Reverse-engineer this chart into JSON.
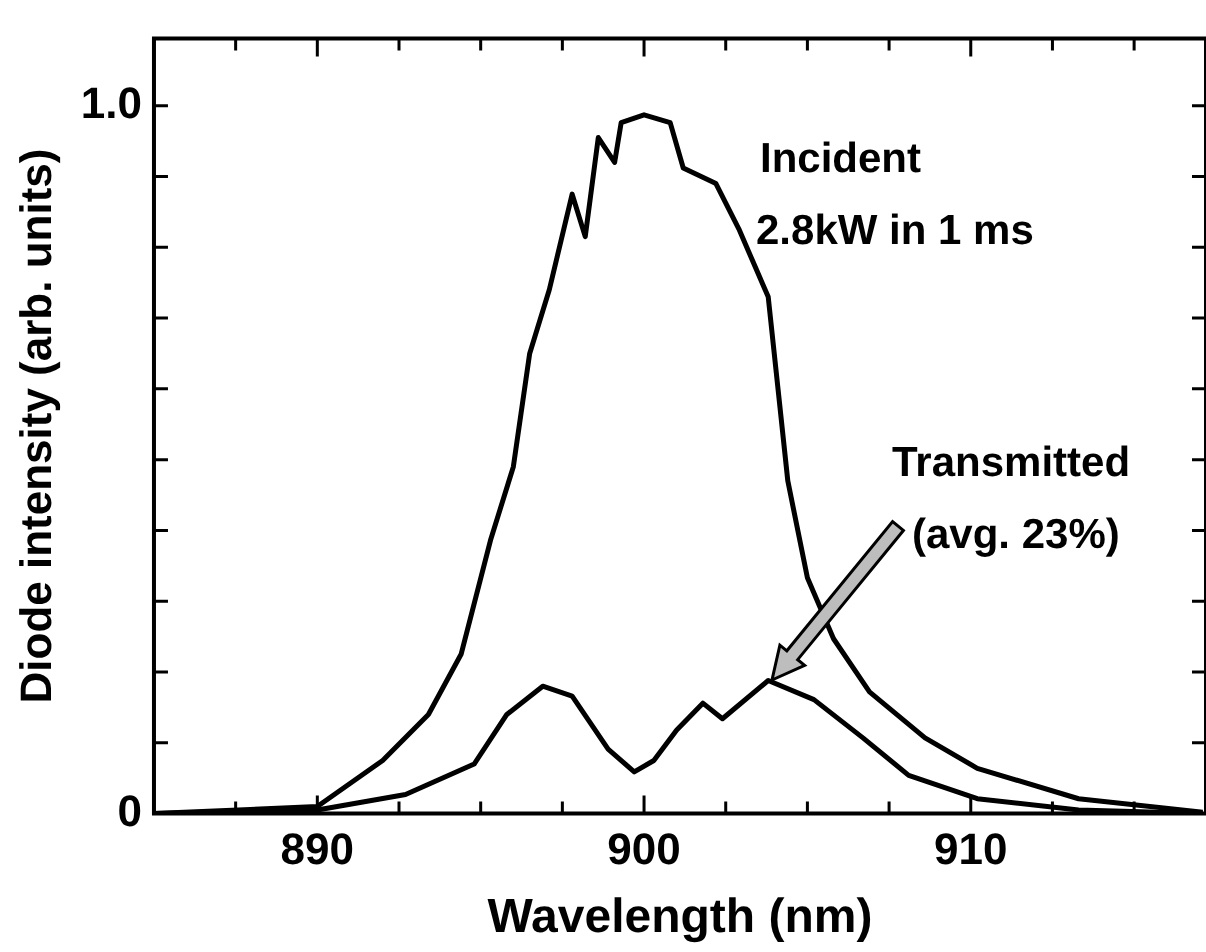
{
  "chart_data": {
    "type": "line",
    "xlabel": "Wavelength (nm)",
    "ylabel": "Diode intensity (arb. units)",
    "xlim": [
      885,
      917.2
    ],
    "ylim": [
      0,
      1.095
    ],
    "xticks": [
      {
        "value": 887.5,
        "label": null
      },
      890,
      {
        "value": 892.5,
        "label": null
      },
      {
        "value": 895,
        "label": null
      },
      {
        "value": 897.5,
        "label": null
      },
      900,
      {
        "value": 902.5,
        "label": null
      },
      {
        "value": 905,
        "label": null
      },
      {
        "value": 907.5,
        "label": null
      },
      910,
      {
        "value": 912.5,
        "label": null
      },
      {
        "value": 915,
        "label": null
      }
    ],
    "yticks": [
      0,
      {
        "value": 0.1,
        "label": null
      },
      {
        "value": 0.2,
        "label": null
      },
      {
        "value": 0.3,
        "label": null
      },
      {
        "value": 0.4,
        "label": null
      },
      {
        "value": 0.5,
        "label": null
      },
      {
        "value": 0.6,
        "label": null
      },
      {
        "value": 0.7,
        "label": null
      },
      {
        "value": 0.8,
        "label": null
      },
      {
        "value": 0.9,
        "label": null
      },
      {
        "value": 1.0,
        "label": "1.0"
      }
    ],
    "grid": false,
    "legend": false,
    "marker": "none",
    "line_style": "solid",
    "annotations": [
      "Incident",
      "2.8kW in 1 ms",
      "Transmitted",
      "(avg. 23%)"
    ],
    "series": [
      {
        "color": "#000000",
        "x": [
          885,
          890,
          892,
          893.4,
          894.4,
          895.3,
          896.0,
          896.5,
          897.1,
          897.8,
          898.2,
          898.6,
          899.1,
          899.3,
          900,
          900.8,
          901.2,
          902.2,
          902.9,
          903.2,
          903.8,
          904.1,
          904.4,
          905.0,
          905.8,
          906.9,
          908.6,
          910.2,
          913.3,
          917.1
        ],
        "values": [
          0,
          0.01,
          0.075,
          0.14,
          0.225,
          0.386,
          0.49,
          0.65,
          0.74,
          0.875,
          0.815,
          0.955,
          0.92,
          0.976,
          0.987,
          0.976,
          0.912,
          0.89,
          0.826,
          0.794,
          0.73,
          0.6,
          0.47,
          0.333,
          0.247,
          0.172,
          0.107,
          0.064,
          0.021,
          0.002
        ]
      },
      {
        "color": "#000000",
        "x": [
          885,
          890,
          892.7,
          894.8,
          895.8,
          896.9,
          897.8,
          898.9,
          899.7,
          900.3,
          901,
          901.8,
          902.4,
          903.8,
          905.2,
          906.7,
          908.1,
          910.2,
          913.3,
          917.1
        ],
        "values": [
          0,
          0.005,
          0.027,
          0.07,
          0.14,
          0.18,
          0.166,
          0.091,
          0.059,
          0.075,
          0.118,
          0.156,
          0.134,
          0.188,
          0.161,
          0.107,
          0.054,
          0.021,
          0.005,
          0
        ]
      }
    ]
  }
}
